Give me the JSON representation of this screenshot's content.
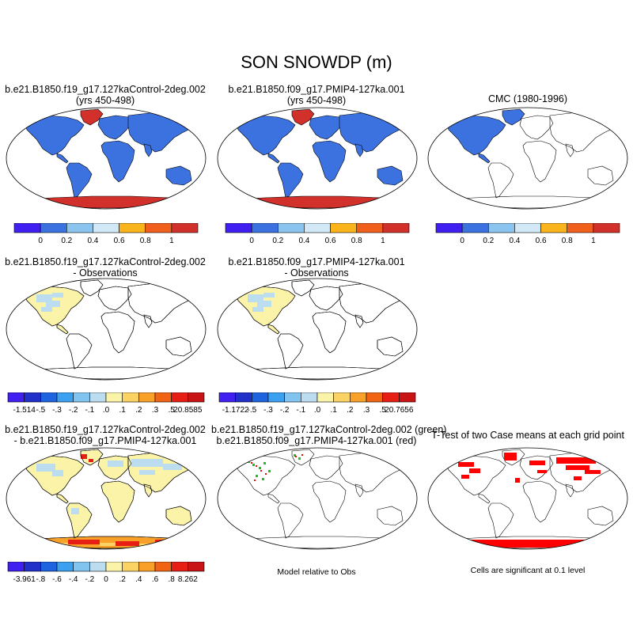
{
  "title": "SON SNOWDP (m)",
  "colors": {
    "ocean": "#ffffff",
    "land_line": "#000000",
    "snow_blue": "#3c71e0",
    "ice_red": "#d2302a",
    "diff_low": "#bcdcf0",
    "diff_high": "#fbf3a8",
    "sig_red": "#ff0000",
    "green": "#20c020"
  },
  "panels": [
    {
      "id": "p1",
      "title_lines": [
        "b.e21.B1850.f19_g17.127kaControl-2deg.002",
        "(yrs 450-498)"
      ],
      "fill": "full"
    },
    {
      "id": "p2",
      "title_lines": [
        "b.e21.B1850.f09_g17.PMIP4-127ka.001",
        "(yrs 450-498)"
      ],
      "fill": "full"
    },
    {
      "id": "p3",
      "title_lines": [
        "CMC (1980-1996)"
      ],
      "fill": "obs"
    },
    {
      "id": "p4",
      "title_lines": [
        "b.e21.B1850.f19_g17.127kaControl-2deg.002",
        "- Observations"
      ],
      "fill": "diff_na"
    },
    {
      "id": "p5",
      "title_lines": [
        "b.e21.B1850.f09_g17.PMIP4-127ka.001",
        "- Observations"
      ],
      "fill": "diff_na"
    },
    {
      "id": "p6",
      "title_lines": [
        "b.e21.B1850.f19_g17.127kaControl-2deg.002",
        "- b.e21.B1850.f09_g17.PMIP4-127ka.001"
      ],
      "fill": "diff_global"
    },
    {
      "id": "p7",
      "title_lines": [
        "b.e21.B1850.f19_g17.127kaControl-2deg.002 (green)",
        "b.e21.B1850.f09_g17.PMIP4-127ka.001 (red)"
      ],
      "fill": "outline"
    },
    {
      "id": "p8",
      "title_lines": [
        "T-Test of two Case means at each grid point"
      ],
      "fill": "ttest"
    }
  ],
  "colorbars": [
    {
      "id": "cb1",
      "labels": [
        "0",
        "0.2",
        "0.4",
        "0.6",
        "0.8",
        "1"
      ],
      "colors": [
        "#4020f0",
        "#3c71e0",
        "#8cc4f0",
        "#d2e8f6",
        "#fbb41c",
        "#f0601c",
        "#d2302a"
      ]
    },
    {
      "id": "cb2",
      "labels": [
        "0",
        "0.2",
        "0.4",
        "0.6",
        "0.8",
        "1"
      ],
      "colors": [
        "#4020f0",
        "#3c71e0",
        "#8cc4f0",
        "#d2e8f6",
        "#fbb41c",
        "#f0601c",
        "#d2302a"
      ]
    },
    {
      "id": "cb3",
      "labels": [
        "0",
        "0.2",
        "0.4",
        "0.6",
        "0.8",
        "1"
      ],
      "colors": [
        "#4020f0",
        "#3c71e0",
        "#8cc4f0",
        "#d2e8f6",
        "#fbb41c",
        "#f0601c",
        "#d2302a"
      ]
    },
    {
      "id": "cb4",
      "labels": [
        "-1.514",
        "-.5",
        "-.3",
        "-.2",
        "-.1",
        ".0",
        ".1",
        ".2",
        ".3",
        ".5",
        "20.8585"
      ],
      "colors": [
        "#4020f0",
        "#2030c8",
        "#1e64e0",
        "#3ca0f0",
        "#82c4f0",
        "#bcdcf0",
        "#fbf3a8",
        "#fbd264",
        "#f8a028",
        "#f06414",
        "#e61e14",
        "#c81414"
      ]
    },
    {
      "id": "cb5",
      "labels": [
        "-1.1722",
        "-.5",
        "-.3",
        "-.2",
        "-.1",
        ".0",
        ".1",
        ".2",
        ".3",
        ".5",
        "20.7656"
      ],
      "colors": [
        "#4020f0",
        "#2030c8",
        "#1e64e0",
        "#3ca0f0",
        "#82c4f0",
        "#bcdcf0",
        "#fbf3a8",
        "#fbd264",
        "#f8a028",
        "#f06414",
        "#e61e14",
        "#c81414"
      ]
    },
    {
      "id": "cb6",
      "labels": [
        "-3.961",
        "-.8",
        "-.6",
        "-.4",
        "-.2",
        "0",
        ".2",
        ".4",
        ".6",
        ".8",
        "8.262"
      ],
      "colors": [
        "#4020f0",
        "#2030c8",
        "#1e64e0",
        "#3ca0f0",
        "#82c4f0",
        "#bcdcf0",
        "#fbf3a8",
        "#fbd264",
        "#f8a028",
        "#f06414",
        "#e61e14",
        "#c81414"
      ]
    }
  ],
  "captions": {
    "model_rel": "Model relative to Obs",
    "sig": "Cells are significant at 0.1 level"
  }
}
